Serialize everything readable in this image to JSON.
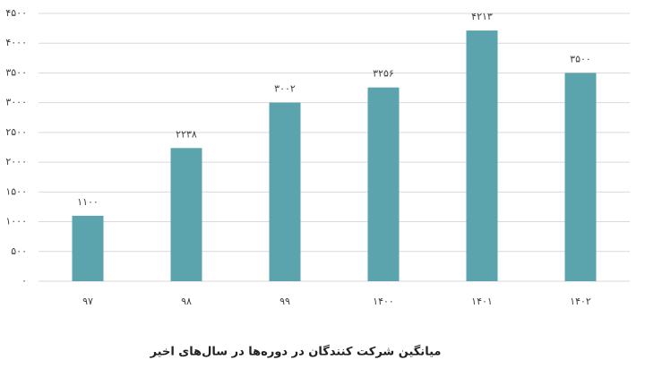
{
  "chart_data": {
    "type": "bar",
    "title": "میانگین شرکت کنندگان در دوره‌ها در سال‌های اخیر",
    "categories": [
      "۹۷",
      "۹۸",
      "۹۹",
      "۱۴۰۰",
      "۱۴۰۱",
      "۱۴۰۲"
    ],
    "values": [
      1100,
      2238,
      3002,
      3256,
      4213,
      3500
    ],
    "value_labels": [
      "۱۱۰۰",
      "۲۲۳۸",
      "۳۰۰۲",
      "۳۲۵۶",
      "۴۲۱۳",
      "۳۵۰۰"
    ],
    "color": "#5ba3ad",
    "ylim": [
      0,
      4500
    ],
    "yticks": [
      {
        "value": 0,
        "label": "۰"
      },
      {
        "value": 500,
        "label": "۵۰۰"
      },
      {
        "value": 1000,
        "label": "۱۰۰۰"
      },
      {
        "value": 1500,
        "label": "۱۵۰۰"
      },
      {
        "value": 2000,
        "label": "۲۰۰۰"
      },
      {
        "value": 2500,
        "label": "۲۵۰۰"
      },
      {
        "value": 3000,
        "label": "۳۰۰۰"
      },
      {
        "value": 3500,
        "label": "۳۵۰۰"
      },
      {
        "value": 4000,
        "label": "۴۰۰۰"
      },
      {
        "value": 4500,
        "label": "۴۵۰۰"
      }
    ],
    "grid": true
  }
}
